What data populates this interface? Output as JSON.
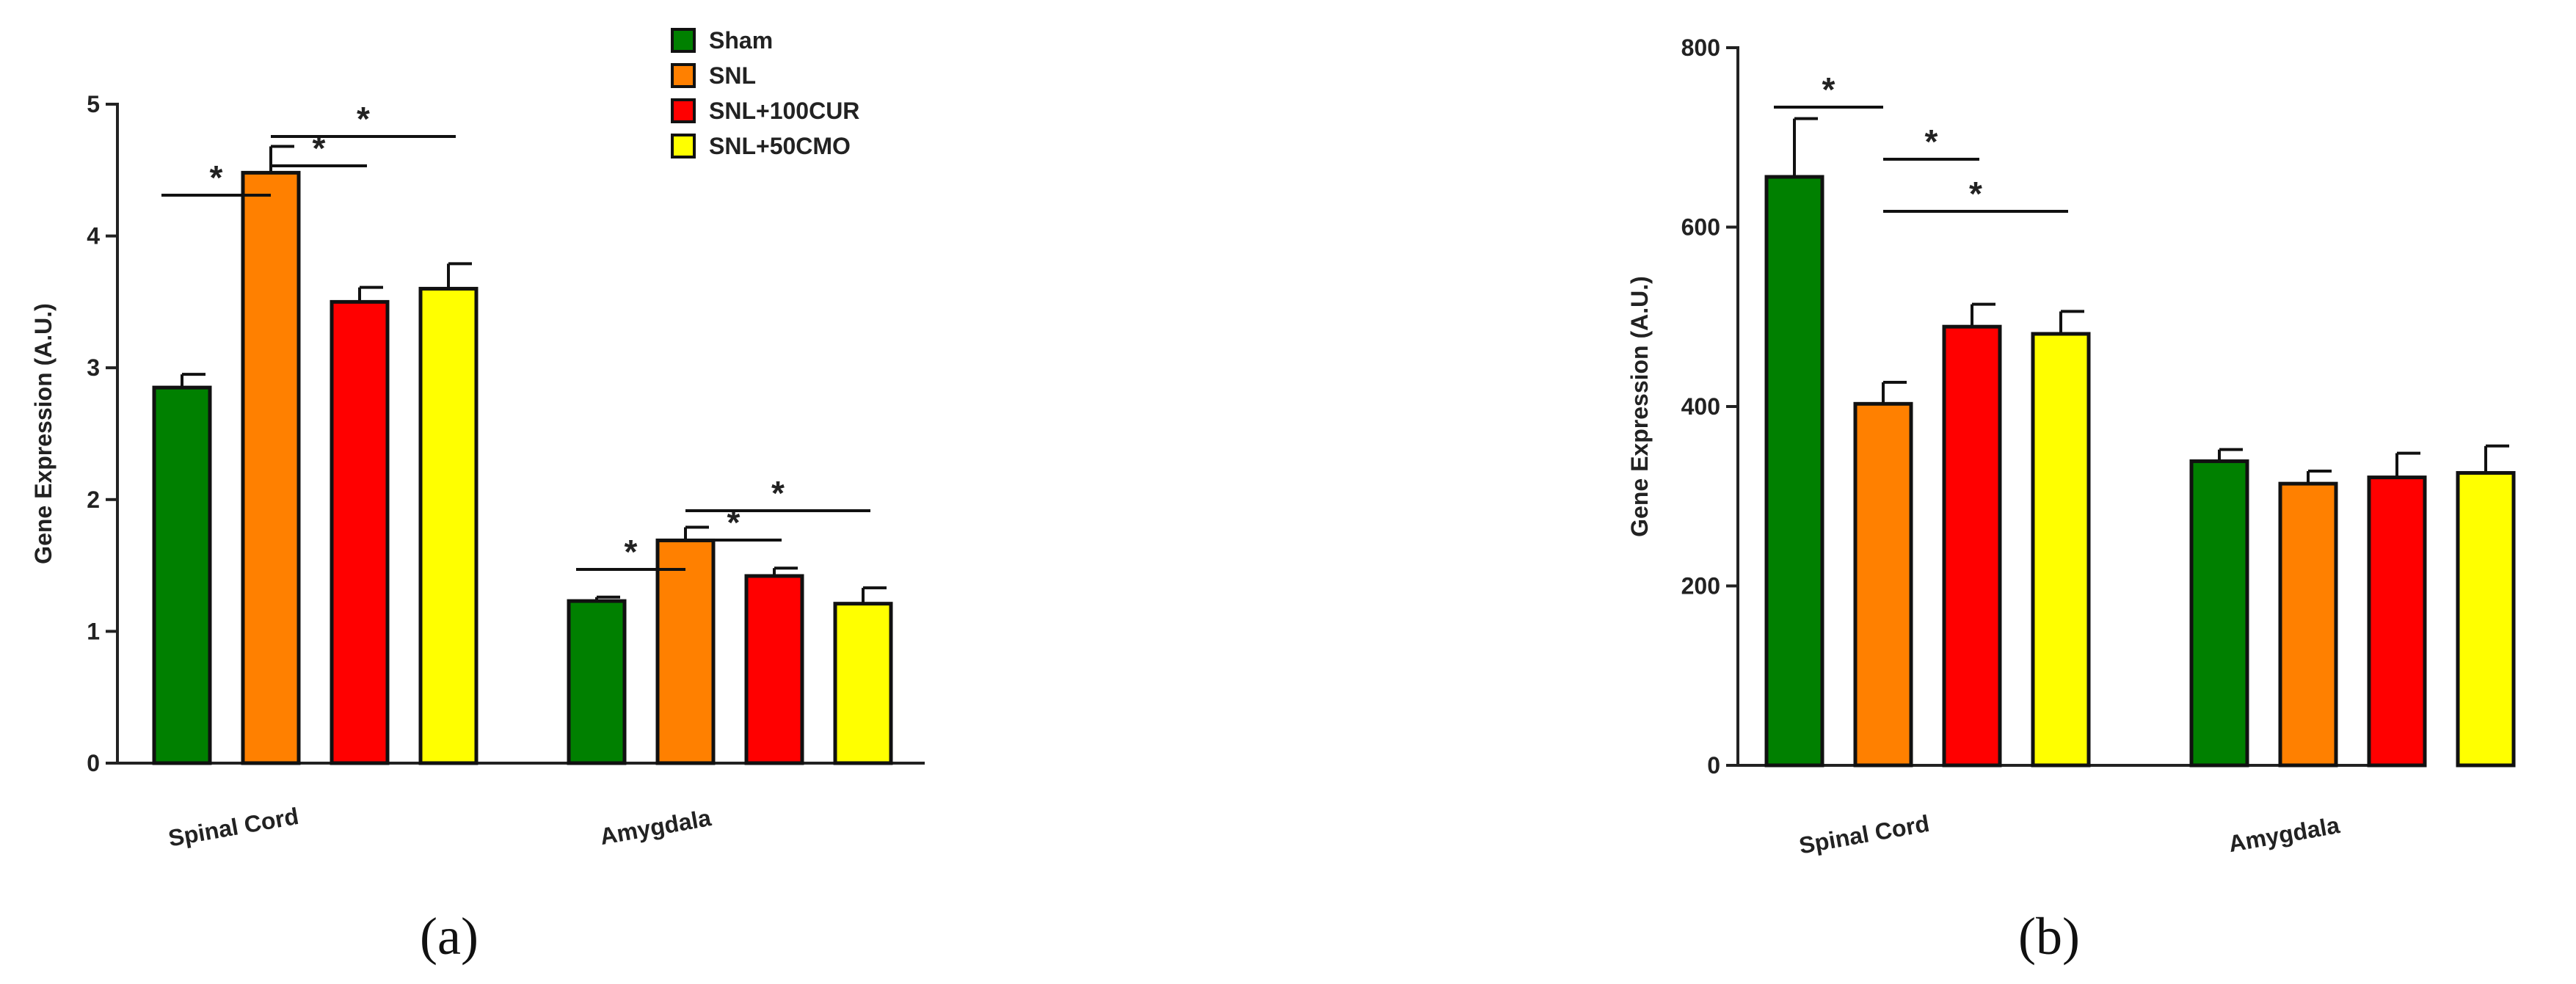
{
  "legend": [
    {
      "label": "Sham",
      "color": "#008000"
    },
    {
      "label": "SNL",
      "color": "#FF8000"
    },
    {
      "label": "SNL+100CUR",
      "color": "#FF0000"
    },
    {
      "label": "SNL+50CMO",
      "color": "#FFFF00"
    }
  ],
  "chart_data": [
    {
      "type": "bar",
      "panel_label": "(a)",
      "ylabel": "Gene Expression (A.U.)",
      "ylim": [
        0,
        5
      ],
      "yticks": [
        "0",
        "1",
        "2",
        "3",
        "4",
        "5"
      ],
      "categories": [
        "Spinal Cord",
        "Amygdala"
      ],
      "series": [
        {
          "name": "Sham",
          "color": "#008000",
          "values": [
            2.85,
            1.23
          ],
          "errors": [
            0.1,
            0.03
          ]
        },
        {
          "name": "SNL",
          "color": "#FF8000",
          "values": [
            4.48,
            1.69
          ],
          "errors": [
            0.2,
            0.1
          ]
        },
        {
          "name": "SNL+100CUR",
          "color": "#FF0000",
          "values": [
            3.5,
            1.42
          ],
          "errors": [
            0.11,
            0.06
          ]
        },
        {
          "name": "SNL+50CMO",
          "color": "#FFFF00",
          "values": [
            3.6,
            1.21
          ],
          "errors": [
            0.19,
            0.12
          ]
        }
      ],
      "significance": [
        {
          "category": 0,
          "from": 0,
          "to": 1,
          "label": "*"
        },
        {
          "category": 0,
          "from": 1,
          "to": 2,
          "label": "*"
        },
        {
          "category": 0,
          "from": 1,
          "to": 3,
          "label": "*"
        },
        {
          "category": 1,
          "from": 0,
          "to": 1,
          "label": "*"
        },
        {
          "category": 1,
          "from": 1,
          "to": 2,
          "label": "*"
        },
        {
          "category": 1,
          "from": 1,
          "to": 3,
          "label": "*"
        }
      ]
    },
    {
      "type": "bar",
      "panel_label": "(b)",
      "ylabel": "Gene Expression (A.U.)",
      "ylim": [
        0,
        800
      ],
      "yticks": [
        "0",
        "200",
        "400",
        "600",
        "800"
      ],
      "categories": [
        "Spinal Cord",
        "Amygdala"
      ],
      "series": [
        {
          "name": "Sham",
          "color": "#008000",
          "values": [
            656,
            339
          ],
          "errors": [
            65,
            13
          ]
        },
        {
          "name": "SNL",
          "color": "#FF8000",
          "values": [
            403,
            314
          ],
          "errors": [
            24,
            14
          ]
        },
        {
          "name": "SNL+100CUR",
          "color": "#FF0000",
          "values": [
            489,
            321
          ],
          "errors": [
            25,
            27
          ]
        },
        {
          "name": "SNL+50CMO",
          "color": "#FFFF00",
          "values": [
            481,
            326
          ],
          "errors": [
            25,
            30
          ]
        }
      ],
      "significance": [
        {
          "category": 0,
          "from": 0,
          "to": 1,
          "label": "*"
        },
        {
          "category": 0,
          "from": 1,
          "to": 2,
          "label": "*"
        },
        {
          "category": 0,
          "from": 1,
          "to": 3,
          "label": "*"
        }
      ]
    }
  ]
}
